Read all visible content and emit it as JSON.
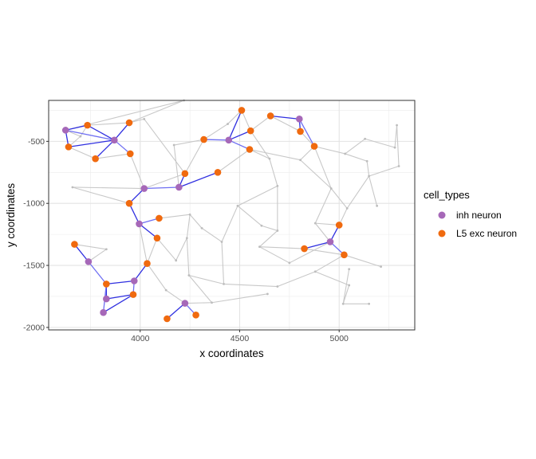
{
  "chart_data": {
    "type": "scatter",
    "xlabel": "x coordinates",
    "ylabel": "y coordinates",
    "xlim": [
      3540,
      5380
    ],
    "ylim": [
      -2020,
      -170
    ],
    "x_major_ticks": [
      4000,
      4500,
      5000
    ],
    "x_minor_ticks": [
      3750,
      4250,
      4750,
      5250
    ],
    "y_major_ticks": [
      -2000,
      -1500,
      -1000,
      -500
    ],
    "y_minor_ticks": [
      -1750,
      -1250,
      -750,
      -250
    ],
    "x_tick_labels": [
      "4000",
      "4500",
      "5000"
    ],
    "y_tick_labels": [
      "-2000",
      "-1500",
      "-1000",
      "-500"
    ],
    "grid": true,
    "legend_position": "right",
    "legend": {
      "title": "cell_types",
      "items": [
        {
          "label": "inh neuron",
          "color": "#A668B8"
        },
        {
          "label": "L5 exc neuron",
          "color": "#F06A0F"
        }
      ]
    },
    "points": [
      {
        "x": 3625,
        "y": -410,
        "type": "inh neuron"
      },
      {
        "x": 3870,
        "y": -490,
        "type": "inh neuron"
      },
      {
        "x": 4020,
        "y": -880,
        "type": "inh neuron"
      },
      {
        "x": 4195,
        "y": -870,
        "type": "inh neuron"
      },
      {
        "x": 3995,
        "y": -1165,
        "type": "inh neuron"
      },
      {
        "x": 3740,
        "y": -1470,
        "type": "inh neuron"
      },
      {
        "x": 3970,
        "y": -1625,
        "type": "inh neuron"
      },
      {
        "x": 3830,
        "y": -1770,
        "type": "inh neuron"
      },
      {
        "x": 3815,
        "y": -1880,
        "type": "inh neuron"
      },
      {
        "x": 4225,
        "y": -1805,
        "type": "inh neuron"
      },
      {
        "x": 4445,
        "y": -490,
        "type": "inh neuron"
      },
      {
        "x": 4800,
        "y": -320,
        "type": "inh neuron"
      },
      {
        "x": 4955,
        "y": -1310,
        "type": "inh neuron"
      },
      {
        "x": 3640,
        "y": -545,
        "type": "L5 exc neuron"
      },
      {
        "x": 3735,
        "y": -370,
        "type": "L5 exc neuron"
      },
      {
        "x": 3775,
        "y": -640,
        "type": "L5 exc neuron"
      },
      {
        "x": 3945,
        "y": -350,
        "type": "L5 exc neuron"
      },
      {
        "x": 3950,
        "y": -600,
        "type": "L5 exc neuron"
      },
      {
        "x": 3945,
        "y": -1000,
        "type": "L5 exc neuron"
      },
      {
        "x": 4095,
        "y": -1120,
        "type": "L5 exc neuron"
      },
      {
        "x": 4085,
        "y": -1280,
        "type": "L5 exc neuron"
      },
      {
        "x": 4035,
        "y": -1485,
        "type": "L5 exc neuron"
      },
      {
        "x": 3670,
        "y": -1330,
        "type": "L5 exc neuron"
      },
      {
        "x": 3830,
        "y": -1650,
        "type": "L5 exc neuron"
      },
      {
        "x": 3965,
        "y": -1735,
        "type": "L5 exc neuron"
      },
      {
        "x": 4135,
        "y": -1930,
        "type": "L5 exc neuron"
      },
      {
        "x": 4280,
        "y": -1900,
        "type": "L5 exc neuron"
      },
      {
        "x": 4225,
        "y": -760,
        "type": "L5 exc neuron"
      },
      {
        "x": 4390,
        "y": -750,
        "type": "L5 exc neuron"
      },
      {
        "x": 4320,
        "y": -485,
        "type": "L5 exc neuron"
      },
      {
        "x": 4510,
        "y": -250,
        "type": "L5 exc neuron"
      },
      {
        "x": 4555,
        "y": -415,
        "type": "L5 exc neuron"
      },
      {
        "x": 4550,
        "y": -565,
        "type": "L5 exc neuron"
      },
      {
        "x": 4655,
        "y": -295,
        "type": "L5 exc neuron"
      },
      {
        "x": 4805,
        "y": -420,
        "type": "L5 exc neuron"
      },
      {
        "x": 4875,
        "y": -540,
        "type": "L5 exc neuron"
      },
      {
        "x": 5000,
        "y": -1175,
        "type": "L5 exc neuron"
      },
      {
        "x": 4825,
        "y": -1365,
        "type": "L5 exc neuron"
      },
      {
        "x": 5025,
        "y": -1415,
        "type": "L5 exc neuron"
      }
    ],
    "highlight_edges": [
      [
        [
          3625,
          -410
        ],
        [
          3735,
          -370
        ]
      ],
      [
        [
          3625,
          -410
        ],
        [
          3640,
          -545
        ]
      ],
      [
        [
          3625,
          -410
        ],
        [
          3870,
          -490
        ]
      ],
      [
        [
          3735,
          -370
        ],
        [
          3870,
          -490
        ]
      ],
      [
        [
          3870,
          -490
        ],
        [
          3945,
          -350
        ]
      ],
      [
        [
          3870,
          -490
        ],
        [
          3950,
          -600
        ]
      ],
      [
        [
          3870,
          -490
        ],
        [
          3775,
          -640
        ]
      ],
      [
        [
          3640,
          -545
        ],
        [
          3870,
          -490
        ]
      ],
      [
        [
          4320,
          -485
        ],
        [
          4445,
          -490
        ]
      ],
      [
        [
          4445,
          -490
        ],
        [
          4510,
          -250
        ]
      ],
      [
        [
          4445,
          -490
        ],
        [
          4555,
          -415
        ]
      ],
      [
        [
          4445,
          -490
        ],
        [
          4550,
          -565
        ]
      ],
      [
        [
          4800,
          -320
        ],
        [
          4655,
          -295
        ]
      ],
      [
        [
          4800,
          -320
        ],
        [
          4805,
          -420
        ]
      ],
      [
        [
          4800,
          -320
        ],
        [
          4875,
          -540
        ]
      ],
      [
        [
          4020,
          -880
        ],
        [
          3945,
          -1000
        ]
      ],
      [
        [
          3945,
          -1000
        ],
        [
          3995,
          -1165
        ]
      ],
      [
        [
          4020,
          -880
        ],
        [
          4195,
          -870
        ]
      ],
      [
        [
          4195,
          -870
        ],
        [
          4225,
          -760
        ]
      ],
      [
        [
          4195,
          -870
        ],
        [
          4390,
          -750
        ]
      ],
      [
        [
          3995,
          -1165
        ],
        [
          4095,
          -1120
        ]
      ],
      [
        [
          3995,
          -1165
        ],
        [
          4085,
          -1280
        ]
      ],
      [
        [
          3740,
          -1470
        ],
        [
          3670,
          -1330
        ]
      ],
      [
        [
          3740,
          -1470
        ],
        [
          3830,
          -1650
        ]
      ],
      [
        [
          4035,
          -1485
        ],
        [
          3970,
          -1625
        ]
      ],
      [
        [
          3970,
          -1625
        ],
        [
          3830,
          -1650
        ]
      ],
      [
        [
          3970,
          -1625
        ],
        [
          3965,
          -1735
        ]
      ],
      [
        [
          3830,
          -1650
        ],
        [
          3830,
          -1770
        ]
      ],
      [
        [
          3830,
          -1770
        ],
        [
          3965,
          -1735
        ]
      ],
      [
        [
          3815,
          -1880
        ],
        [
          3830,
          -1650
        ]
      ],
      [
        [
          3815,
          -1880
        ],
        [
          3965,
          -1735
        ]
      ],
      [
        [
          4225,
          -1805
        ],
        [
          4135,
          -1930
        ]
      ],
      [
        [
          4225,
          -1805
        ],
        [
          4280,
          -1900
        ]
      ],
      [
        [
          4955,
          -1310
        ],
        [
          4825,
          -1365
        ]
      ],
      [
        [
          4955,
          -1310
        ],
        [
          5000,
          -1175
        ]
      ],
      [
        [
          4955,
          -1310
        ],
        [
          5025,
          -1415
        ]
      ]
    ],
    "background_edges": [
      [
        [
          3625,
          -410
        ],
        [
          3700,
          -460
        ]
      ],
      [
        [
          3700,
          -460
        ],
        [
          3735,
          -370
        ]
      ],
      [
        [
          3640,
          -545
        ],
        [
          3700,
          -460
        ]
      ],
      [
        [
          3640,
          -545
        ],
        [
          3775,
          -640
        ]
      ],
      [
        [
          3775,
          -640
        ],
        [
          3950,
          -600
        ]
      ],
      [
        [
          3735,
          -370
        ],
        [
          3945,
          -350
        ]
      ],
      [
        [
          3945,
          -350
        ],
        [
          4220,
          -170
        ]
      ],
      [
        [
          3625,
          -410
        ],
        [
          4220,
          -170
        ]
      ],
      [
        [
          3945,
          -350
        ],
        [
          4020,
          -320
        ]
      ],
      [
        [
          4020,
          -320
        ],
        [
          4225,
          -760
        ]
      ],
      [
        [
          3950,
          -600
        ],
        [
          4020,
          -880
        ]
      ],
      [
        [
          3660,
          -870
        ],
        [
          4020,
          -880
        ]
      ],
      [
        [
          3660,
          -870
        ],
        [
          3945,
          -1000
        ]
      ],
      [
        [
          4020,
          -880
        ],
        [
          4225,
          -760
        ]
      ],
      [
        [
          4170,
          -530
        ],
        [
          4195,
          -870
        ]
      ],
      [
        [
          4170,
          -530
        ],
        [
          4320,
          -485
        ]
      ],
      [
        [
          4320,
          -485
        ],
        [
          4225,
          -760
        ]
      ],
      [
        [
          4390,
          -750
        ],
        [
          4550,
          -565
        ]
      ],
      [
        [
          4550,
          -565
        ],
        [
          4650,
          -640
        ]
      ],
      [
        [
          4650,
          -640
        ],
        [
          4690,
          -860
        ]
      ],
      [
        [
          4555,
          -415
        ],
        [
          4650,
          -640
        ]
      ],
      [
        [
          4510,
          -250
        ],
        [
          4555,
          -415
        ]
      ],
      [
        [
          4555,
          -415
        ],
        [
          4655,
          -295
        ]
      ],
      [
        [
          4655,
          -295
        ],
        [
          4805,
          -420
        ]
      ],
      [
        [
          4805,
          -420
        ],
        [
          4875,
          -540
        ]
      ],
      [
        [
          4875,
          -540
        ],
        [
          4805,
          -650
        ]
      ],
      [
        [
          4550,
          -565
        ],
        [
          4805,
          -650
        ]
      ],
      [
        [
          4805,
          -650
        ],
        [
          4960,
          -880
        ]
      ],
      [
        [
          4875,
          -540
        ],
        [
          4960,
          -880
        ]
      ],
      [
        [
          4960,
          -880
        ],
        [
          5040,
          -1040
        ]
      ],
      [
        [
          5040,
          -1040
        ],
        [
          5000,
          -1175
        ]
      ],
      [
        [
          4875,
          -540
        ],
        [
          5030,
          -600
        ]
      ],
      [
        [
          5030,
          -600
        ],
        [
          5140,
          -660
        ]
      ],
      [
        [
          5140,
          -660
        ],
        [
          5150,
          -780
        ]
      ],
      [
        [
          5150,
          -780
        ],
        [
          5190,
          -1020
        ]
      ],
      [
        [
          5030,
          -600
        ],
        [
          5130,
          -480
        ]
      ],
      [
        [
          5130,
          -480
        ],
        [
          5280,
          -550
        ]
      ],
      [
        [
          5280,
          -550
        ],
        [
          5290,
          -370
        ]
      ],
      [
        [
          5290,
          -370
        ],
        [
          5300,
          -700
        ]
      ],
      [
        [
          5300,
          -700
        ],
        [
          5150,
          -780
        ]
      ],
      [
        [
          5040,
          -1040
        ],
        [
          5150,
          -780
        ]
      ],
      [
        [
          4960,
          -880
        ],
        [
          4880,
          -1160
        ]
      ],
      [
        [
          4880,
          -1160
        ],
        [
          5000,
          -1175
        ]
      ],
      [
        [
          4880,
          -1160
        ],
        [
          4955,
          -1310
        ]
      ],
      [
        [
          4690,
          -860
        ],
        [
          4690,
          -1220
        ]
      ],
      [
        [
          4690,
          -1220
        ],
        [
          4600,
          -1350
        ]
      ],
      [
        [
          4600,
          -1350
        ],
        [
          4825,
          -1365
        ]
      ],
      [
        [
          4600,
          -1350
        ],
        [
          4750,
          -1480
        ]
      ],
      [
        [
          4750,
          -1480
        ],
        [
          4955,
          -1310
        ]
      ],
      [
        [
          4825,
          -1365
        ],
        [
          5025,
          -1415
        ]
      ],
      [
        [
          5025,
          -1415
        ],
        [
          5210,
          -1510
        ]
      ],
      [
        [
          5025,
          -1415
        ],
        [
          4880,
          -1550
        ]
      ],
      [
        [
          4880,
          -1550
        ],
        [
          5050,
          -1660
        ]
      ],
      [
        [
          5050,
          -1660
        ],
        [
          5020,
          -1810
        ]
      ],
      [
        [
          5020,
          -1810
        ],
        [
          5150,
          -1810
        ]
      ],
      [
        [
          5020,
          -1810
        ],
        [
          5050,
          -1530
        ]
      ],
      [
        [
          4880,
          -1550
        ],
        [
          4690,
          -1670
        ]
      ],
      [
        [
          4690,
          -1670
        ],
        [
          4420,
          -1650
        ]
      ],
      [
        [
          4420,
          -1650
        ],
        [
          4410,
          -1310
        ]
      ],
      [
        [
          4410,
          -1310
        ],
        [
          4490,
          -1020
        ]
      ],
      [
        [
          4490,
          -1020
        ],
        [
          4610,
          -1180
        ]
      ],
      [
        [
          4610,
          -1180
        ],
        [
          4690,
          -1220
        ]
      ],
      [
        [
          4490,
          -1020
        ],
        [
          4690,
          -860
        ]
      ],
      [
        [
          4410,
          -1310
        ],
        [
          4310,
          -1200
        ]
      ],
      [
        [
          4310,
          -1200
        ],
        [
          4250,
          -1090
        ]
      ],
      [
        [
          4250,
          -1090
        ],
        [
          4235,
          -1280
        ]
      ],
      [
        [
          4235,
          -1280
        ],
        [
          4180,
          -1460
        ]
      ],
      [
        [
          4085,
          -1280
        ],
        [
          4180,
          -1460
        ]
      ],
      [
        [
          4095,
          -1120
        ],
        [
          4250,
          -1090
        ]
      ],
      [
        [
          4235,
          -1280
        ],
        [
          4245,
          -1580
        ]
      ],
      [
        [
          4245,
          -1580
        ],
        [
          4420,
          -1650
        ]
      ],
      [
        [
          4245,
          -1580
        ],
        [
          4360,
          -1800
        ]
      ],
      [
        [
          4360,
          -1800
        ],
        [
          4640,
          -1730
        ]
      ],
      [
        [
          4225,
          -1805
        ],
        [
          4360,
          -1800
        ]
      ],
      [
        [
          4035,
          -1485
        ],
        [
          4085,
          -1280
        ]
      ],
      [
        [
          4035,
          -1485
        ],
        [
          4130,
          -1700
        ]
      ],
      [
        [
          4130,
          -1700
        ],
        [
          4225,
          -1805
        ]
      ],
      [
        [
          3670,
          -1330
        ],
        [
          3830,
          -1370
        ]
      ],
      [
        [
          3830,
          -1370
        ],
        [
          3740,
          -1470
        ]
      ],
      [
        [
          3995,
          -1165
        ],
        [
          4035,
          -1485
        ]
      ],
      [
        [
          4440,
          -360
        ],
        [
          4320,
          -485
        ]
      ],
      [
        [
          4440,
          -360
        ],
        [
          4510,
          -250
        ]
      ]
    ]
  }
}
